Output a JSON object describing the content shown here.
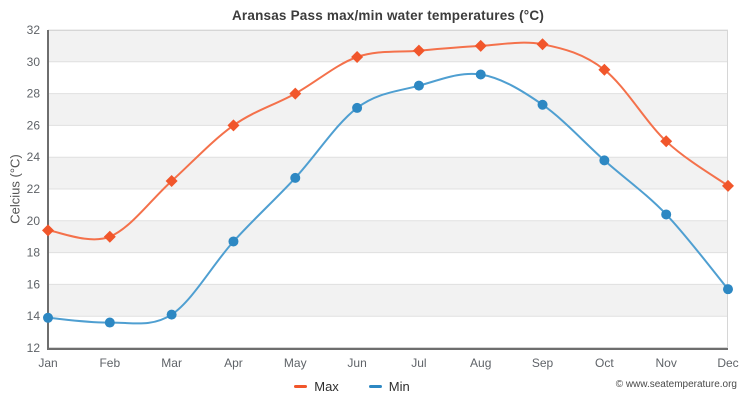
{
  "chart_data": {
    "type": "line",
    "title": "Aransas Pass max/min water temperatures (°C)",
    "xlabel": "",
    "ylabel": "Celcius (°C)",
    "categories": [
      "Jan",
      "Feb",
      "Mar",
      "Apr",
      "May",
      "Jun",
      "Jul",
      "Aug",
      "Sep",
      "Oct",
      "Nov",
      "Dec"
    ],
    "series": [
      {
        "name": "Max",
        "marker": "diamond",
        "line_color": "#f4714b",
        "marker_color": "#f1562b",
        "values": [
          19.4,
          19.0,
          22.5,
          26.0,
          28.0,
          30.3,
          30.7,
          31.0,
          31.1,
          29.5,
          25.0,
          22.2
        ]
      },
      {
        "name": "Min",
        "marker": "circle",
        "line_color": "#4f9fd1",
        "marker_color": "#2d88c3",
        "values": [
          13.9,
          13.6,
          14.1,
          18.7,
          22.7,
          27.1,
          28.5,
          29.2,
          27.3,
          23.8,
          20.4,
          15.7
        ]
      }
    ],
    "ylim": [
      12,
      32
    ],
    "ytick_step": 2,
    "grid": true,
    "banded_background": true,
    "legend_position": "bottom",
    "style": {
      "band_fill": "#f2f2f2",
      "grid_color": "#e0e0e0",
      "border_color": "#d6d6d6",
      "axis_color": "#6e6e6e",
      "tick_label_color": "#5f6368"
    }
  },
  "legend": {
    "items": [
      {
        "label": "Max",
        "color": "#f1562b"
      },
      {
        "label": "Min",
        "color": "#2d88c3"
      }
    ]
  },
  "footer": {
    "copyright": "© www.seatemperature.org"
  }
}
